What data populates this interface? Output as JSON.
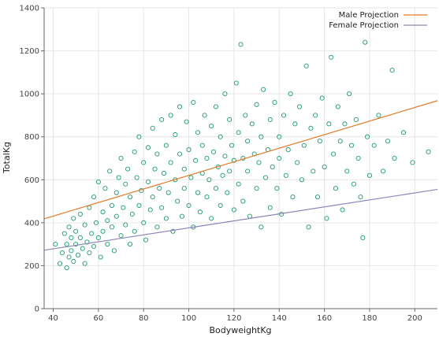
{
  "chart_data": {
    "type": "scatter",
    "title": "",
    "xlabel": "BodyweightKg",
    "ylabel": "TotalKg",
    "xlim": [
      36,
      210
    ],
    "ylim": [
      0,
      1400
    ],
    "xticks": [
      40,
      60,
      80,
      100,
      120,
      140,
      160,
      180,
      200
    ],
    "yticks": [
      0,
      200,
      400,
      600,
      800,
      1000,
      1200,
      1400
    ],
    "grid": "vertical and horizontal, light gray",
    "legend": "top-right",
    "colors": {
      "scatter": "#1a9a72",
      "male": "#e07b28",
      "female": "#8c86b8",
      "axis": "#666666",
      "grid": "#e6e6e6"
    },
    "series": [
      {
        "name": "Male Projection",
        "kind": "line",
        "x": [
          36,
          210
        ],
        "y": [
          418,
          968
        ]
      },
      {
        "name": "Female Projection",
        "kind": "line",
        "x": [
          36,
          210
        ],
        "y": [
          272,
          555
        ]
      }
    ],
    "scatter_points": [
      [
        41,
        300
      ],
      [
        43,
        210
      ],
      [
        44,
        260
      ],
      [
        45,
        350
      ],
      [
        46,
        190
      ],
      [
        46,
        300
      ],
      [
        47,
        380
      ],
      [
        47,
        240
      ],
      [
        48,
        330
      ],
      [
        48,
        270
      ],
      [
        49,
        220
      ],
      [
        49,
        420
      ],
      [
        50,
        300
      ],
      [
        50,
        360
      ],
      [
        51,
        250
      ],
      [
        52,
        330
      ],
      [
        52,
        440
      ],
      [
        53,
        280
      ],
      [
        54,
        210
      ],
      [
        54,
        390
      ],
      [
        55,
        310
      ],
      [
        56,
        470
      ],
      [
        56,
        260
      ],
      [
        57,
        350
      ],
      [
        58,
        520
      ],
      [
        58,
        290
      ],
      [
        59,
        400
      ],
      [
        60,
        330
      ],
      [
        60,
        590
      ],
      [
        61,
        240
      ],
      [
        62,
        450
      ],
      [
        62,
        360
      ],
      [
        63,
        560
      ],
      [
        64,
        300
      ],
      [
        64,
        410
      ],
      [
        65,
        640
      ],
      [
        66,
        380
      ],
      [
        66,
        480
      ],
      [
        67,
        270
      ],
      [
        68,
        540
      ],
      [
        68,
        430
      ],
      [
        69,
        610
      ],
      [
        70,
        340
      ],
      [
        70,
        700
      ],
      [
        71,
        470
      ],
      [
        72,
        390
      ],
      [
        72,
        580
      ],
      [
        73,
        650
      ],
      [
        74,
        300
      ],
      [
        74,
        520
      ],
      [
        75,
        440
      ],
      [
        76,
        730
      ],
      [
        76,
        360
      ],
      [
        77,
        610
      ],
      [
        78,
        480
      ],
      [
        78,
        800
      ],
      [
        79,
        550
      ],
      [
        80,
        400
      ],
      [
        80,
        680
      ],
      [
        81,
        320
      ],
      [
        82,
        590
      ],
      [
        82,
        750
      ],
      [
        83,
        460
      ],
      [
        84,
        840
      ],
      [
        84,
        520
      ],
      [
        85,
        650
      ],
      [
        86,
        380
      ],
      [
        86,
        720
      ],
      [
        87,
        560
      ],
      [
        88,
        880
      ],
      [
        88,
        470
      ],
      [
        89,
        630
      ],
      [
        90,
        760
      ],
      [
        90,
        420
      ],
      [
        91,
        540
      ],
      [
        92,
        900
      ],
      [
        92,
        680
      ],
      [
        93,
        360
      ],
      [
        94,
        600
      ],
      [
        94,
        810
      ],
      [
        95,
        500
      ],
      [
        96,
        720
      ],
      [
        96,
        940
      ],
      [
        97,
        430
      ],
      [
        98,
        650
      ],
      [
        98,
        560
      ],
      [
        99,
        870
      ],
      [
        100,
        480
      ],
      [
        100,
        740
      ],
      [
        101,
        610
      ],
      [
        102,
        960
      ],
      [
        102,
        380
      ],
      [
        103,
        690
      ],
      [
        104,
        540
      ],
      [
        104,
        820
      ],
      [
        105,
        450
      ],
      [
        106,
        760
      ],
      [
        106,
        630
      ],
      [
        107,
        900
      ],
      [
        108,
        520
      ],
      [
        108,
        700
      ],
      [
        109,
        600
      ],
      [
        110,
        850
      ],
      [
        110,
        420
      ],
      [
        111,
        730
      ],
      [
        112,
        560
      ],
      [
        112,
        940
      ],
      [
        113,
        660
      ],
      [
        114,
        480
      ],
      [
        114,
        800
      ],
      [
        115,
        620
      ],
      [
        116,
        710
      ],
      [
        116,
        1000
      ],
      [
        117,
        540
      ],
      [
        118,
        880
      ],
      [
        118,
        640
      ],
      [
        119,
        760
      ],
      [
        120,
        460
      ],
      [
        120,
        690
      ],
      [
        121,
        1050
      ],
      [
        122,
        580
      ],
      [
        122,
        820
      ],
      [
        123,
        1230
      ],
      [
        124,
        700
      ],
      [
        124,
        500
      ],
      [
        125,
        900
      ],
      [
        126,
        640
      ],
      [
        126,
        780
      ],
      [
        127,
        430
      ],
      [
        128,
        860
      ],
      [
        129,
        720
      ],
      [
        130,
        560
      ],
      [
        130,
        950
      ],
      [
        131,
        680
      ],
      [
        132,
        800
      ],
      [
        132,
        380
      ],
      [
        133,
        1020
      ],
      [
        134,
        610
      ],
      [
        135,
        740
      ],
      [
        136,
        880
      ],
      [
        136,
        470
      ],
      [
        137,
        660
      ],
      [
        138,
        960
      ],
      [
        139,
        560
      ],
      [
        140,
        800
      ],
      [
        140,
        700
      ],
      [
        141,
        440
      ],
      [
        142,
        900
      ],
      [
        143,
        620
      ],
      [
        144,
        740
      ],
      [
        145,
        1000
      ],
      [
        146,
        520
      ],
      [
        147,
        860
      ],
      [
        148,
        680
      ],
      [
        149,
        940
      ],
      [
        150,
        600
      ],
      [
        151,
        760
      ],
      [
        152,
        1130
      ],
      [
        153,
        380
      ],
      [
        154,
        840
      ],
      [
        155,
        640
      ],
      [
        156,
        900
      ],
      [
        157,
        520
      ],
      [
        158,
        780
      ],
      [
        159,
        980
      ],
      [
        160,
        660
      ],
      [
        161,
        420
      ],
      [
        162,
        860
      ],
      [
        163,
        1170
      ],
      [
        164,
        720
      ],
      [
        165,
        560
      ],
      [
        166,
        940
      ],
      [
        167,
        780
      ],
      [
        168,
        460
      ],
      [
        169,
        860
      ],
      [
        170,
        640
      ],
      [
        171,
        1000
      ],
      [
        172,
        760
      ],
      [
        173,
        580
      ],
      [
        174,
        880
      ],
      [
        175,
        700
      ],
      [
        176,
        520
      ],
      [
        177,
        330
      ],
      [
        178,
        1240
      ],
      [
        179,
        800
      ],
      [
        180,
        620
      ],
      [
        182,
        760
      ],
      [
        184,
        900
      ],
      [
        186,
        640
      ],
      [
        188,
        780
      ],
      [
        190,
        1110
      ],
      [
        191,
        700
      ],
      [
        195,
        820
      ],
      [
        199,
        680
      ],
      [
        206,
        730
      ]
    ]
  }
}
